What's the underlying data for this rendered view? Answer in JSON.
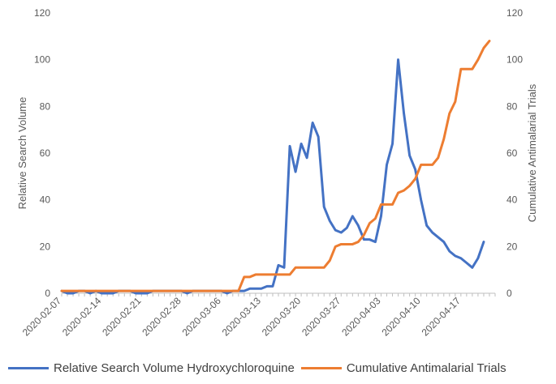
{
  "chart_data": {
    "type": "line",
    "title": "",
    "xlabel": "",
    "ylabel": "Relative Search Volume",
    "y2label": "Cumulative Antimalarial Trials",
    "ylim": [
      0,
      120
    ],
    "y2lim": [
      0,
      120
    ],
    "yticks": [
      "0",
      "20",
      "40",
      "60",
      "80",
      "100",
      "120"
    ],
    "y2ticks": [
      "0",
      "20",
      "40",
      "60",
      "80",
      "100",
      "120"
    ],
    "x": [
      "2020-02-07",
      "2020-02-08",
      "2020-02-09",
      "2020-02-10",
      "2020-02-11",
      "2020-02-12",
      "2020-02-13",
      "2020-02-14",
      "2020-02-15",
      "2020-02-16",
      "2020-02-17",
      "2020-02-18",
      "2020-02-19",
      "2020-02-20",
      "2020-02-21",
      "2020-02-22",
      "2020-02-23",
      "2020-02-24",
      "2020-02-25",
      "2020-02-26",
      "2020-02-27",
      "2020-02-28",
      "2020-02-29",
      "2020-03-01",
      "2020-03-02",
      "2020-03-03",
      "2020-03-04",
      "2020-03-05",
      "2020-03-06",
      "2020-03-07",
      "2020-03-08",
      "2020-03-09",
      "2020-03-10",
      "2020-03-11",
      "2020-03-12",
      "2020-03-13",
      "2020-03-14",
      "2020-03-15",
      "2020-03-16",
      "2020-03-17",
      "2020-03-18",
      "2020-03-19",
      "2020-03-20",
      "2020-03-21",
      "2020-03-22",
      "2020-03-23",
      "2020-03-24",
      "2020-03-25",
      "2020-03-26",
      "2020-03-27",
      "2020-03-28",
      "2020-03-29",
      "2020-03-30",
      "2020-03-31",
      "2020-04-01",
      "2020-04-02",
      "2020-04-03",
      "2020-04-04",
      "2020-04-05",
      "2020-04-06",
      "2020-04-07",
      "2020-04-08",
      "2020-04-09",
      "2020-04-10",
      "2020-04-11",
      "2020-04-12",
      "2020-04-13",
      "2020-04-14",
      "2020-04-15",
      "2020-04-16",
      "2020-04-17",
      "2020-04-18",
      "2020-04-19",
      "2020-04-20",
      "2020-04-21",
      "2020-04-22",
      "2020-04-23"
    ],
    "xtick_labels": [
      "2020-02-07",
      "2020-02-14",
      "2020-02-21",
      "2020-02-28",
      "2020-03-06",
      "2020-03-13",
      "2020-03-20",
      "2020-03-27",
      "2020-04-03",
      "2020-04-10",
      "2020-04-17"
    ],
    "series": [
      {
        "name": "Relative Search Volume Hydroxychloroquine",
        "axis": "left",
        "color": "#4472C4",
        "values": [
          1,
          0,
          0,
          1,
          1,
          0,
          1,
          0,
          0,
          0,
          1,
          1,
          1,
          0,
          0,
          0,
          1,
          1,
          1,
          1,
          1,
          1,
          0,
          1,
          1,
          1,
          1,
          1,
          1,
          0,
          1,
          1,
          1,
          2,
          2,
          2,
          3,
          3,
          12,
          11,
          63,
          52,
          64,
          58,
          73,
          67,
          37,
          31,
          27,
          26,
          28,
          33,
          29,
          23,
          23,
          22,
          33,
          55,
          64,
          100,
          77,
          59,
          53,
          40,
          29,
          26,
          24,
          22,
          18,
          16,
          15,
          13,
          11,
          15,
          22,
          null,
          null
        ]
      },
      {
        "name": "Cumulative Antimalarial Trials",
        "axis": "right",
        "color": "#ED7D31",
        "values": [
          1,
          1,
          1,
          1,
          1,
          1,
          1,
          1,
          1,
          1,
          1,
          1,
          1,
          1,
          1,
          1,
          1,
          1,
          1,
          1,
          1,
          1,
          1,
          1,
          1,
          1,
          1,
          1,
          1,
          1,
          1,
          1,
          7,
          7,
          8,
          8,
          8,
          8,
          8,
          8,
          8,
          11,
          11,
          11,
          11,
          11,
          11,
          14,
          20,
          21,
          21,
          21,
          22,
          25,
          30,
          32,
          38,
          38,
          38,
          43,
          44,
          46,
          49,
          55,
          55,
          55,
          58,
          66,
          77,
          82,
          96,
          96,
          96,
          100,
          105,
          108,
          null
        ]
      }
    ],
    "grid": false,
    "legend": "bottom"
  }
}
